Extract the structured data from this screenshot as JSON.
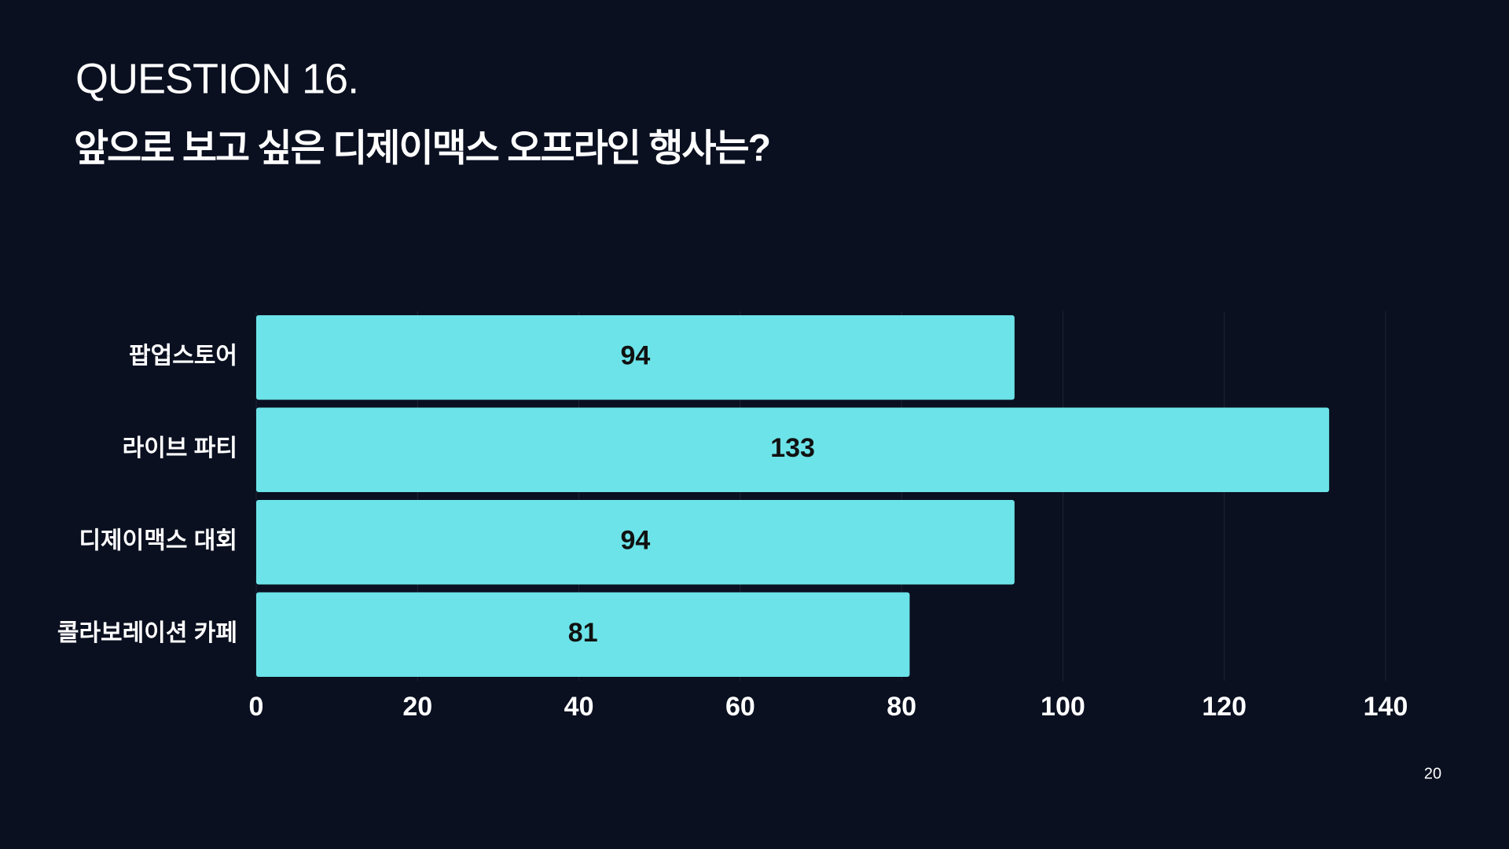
{
  "chart_data": {
    "type": "bar",
    "orientation": "horizontal",
    "title": "QUESTION 16.",
    "subtitle": "앞으로 보고 싶은 디제이맥스 오프라인 행사는?",
    "categories": [
      "팝업스토어",
      "라이브 파티",
      "디제이맥스 대회",
      "콜라보레이션 카페"
    ],
    "values": [
      94,
      133,
      94,
      81
    ],
    "color": "#6ce3e8",
    "xlim": [
      0,
      140
    ],
    "xticks": [
      0,
      20,
      40,
      60,
      80,
      100,
      120,
      140
    ],
    "grid": true
  },
  "page_number": 20
}
